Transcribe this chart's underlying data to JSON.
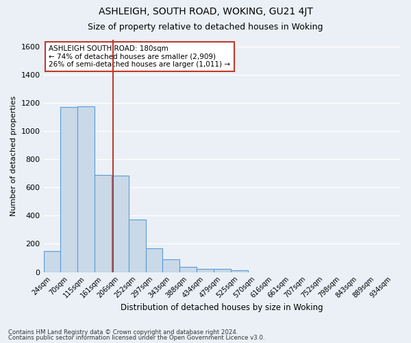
{
  "title": "ASHLEIGH, SOUTH ROAD, WOKING, GU21 4JT",
  "subtitle": "Size of property relative to detached houses in Woking",
  "xlabel": "Distribution of detached houses by size in Woking",
  "ylabel": "Number of detached properties",
  "bar_values": [
    148,
    1170,
    1175,
    690,
    685,
    375,
    170,
    90,
    35,
    22,
    20,
    12,
    0,
    0,
    0,
    0,
    0,
    0,
    0,
    0,
    0
  ],
  "categories": [
    "24sqm",
    "70sqm",
    "115sqm",
    "161sqm",
    "206sqm",
    "252sqm",
    "297sqm",
    "343sqm",
    "388sqm",
    "434sqm",
    "479sqm",
    "525sqm",
    "570sqm",
    "616sqm",
    "661sqm",
    "707sqm",
    "752sqm",
    "798sqm",
    "843sqm",
    "889sqm",
    "934sqm"
  ],
  "bar_color": "#c9d9e8",
  "bar_edge_color": "#5b9bd5",
  "vline_color": "#c0392b",
  "vline_x": 3.57,
  "annotation_title": "ASHLEIGH SOUTH ROAD: 180sqm",
  "annotation_line1": "← 74% of detached houses are smaller (2,909)",
  "annotation_line2": "26% of semi-detached houses are larger (1,011) →",
  "annotation_box_color": "#ffffff",
  "annotation_box_edge": "#c0392b",
  "ylim": [
    0,
    1650
  ],
  "yticks": [
    0,
    200,
    400,
    600,
    800,
    1000,
    1200,
    1400,
    1600
  ],
  "footer1": "Contains HM Land Registry data © Crown copyright and database right 2024.",
  "footer2": "Contains public sector information licensed under the Open Government Licence v3.0.",
  "bg_color": "#eaf0f6",
  "grid_color": "#ffffff"
}
